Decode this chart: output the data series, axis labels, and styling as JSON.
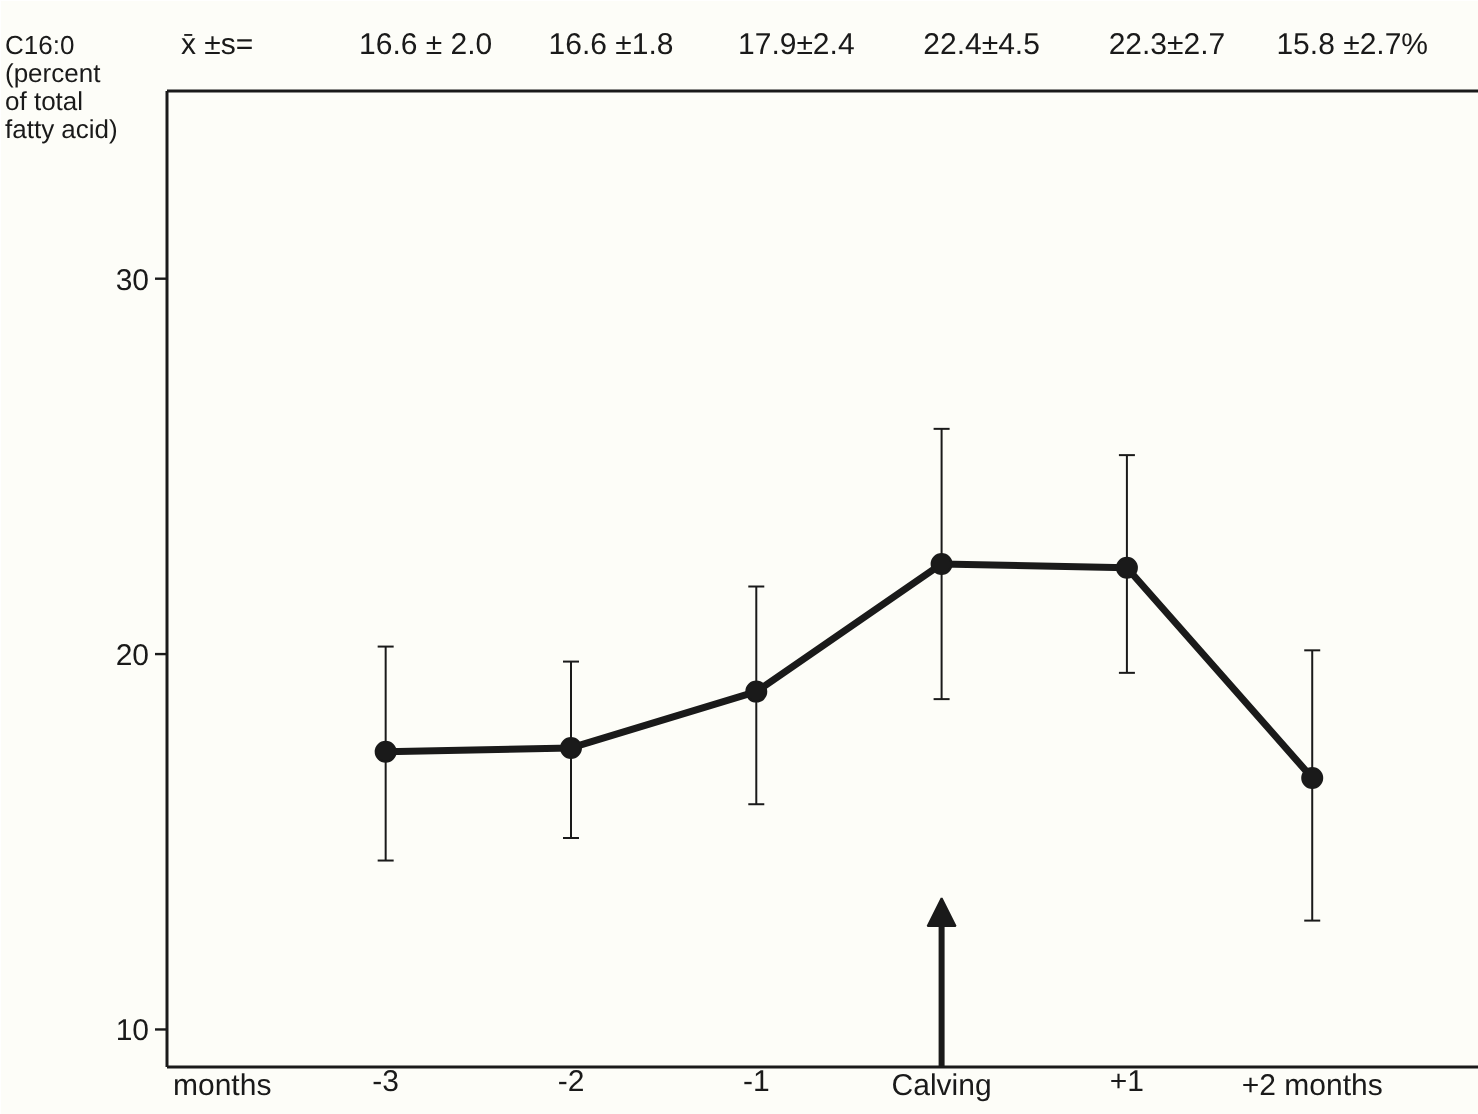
{
  "chart_data": {
    "type": "line",
    "ylabel": "C16:0\n(percent\nof total\nfatty acid)",
    "xlabel": "months",
    "categories": [
      "-3",
      "-2",
      "-1",
      "Calving",
      "+1",
      "+2 months"
    ],
    "series": [
      {
        "color": "#1a1a1a",
        "values": [
          17.4,
          17.5,
          19.0,
          22.4,
          22.3,
          16.7
        ],
        "errors": [
          [
            14.5,
            20.2
          ],
          [
            15.1,
            19.8
          ],
          [
            16.0,
            21.8
          ],
          [
            18.8,
            26.0
          ],
          [
            19.5,
            25.3
          ],
          [
            12.9,
            20.1
          ]
        ]
      }
    ],
    "ylim": [
      9,
      35
    ],
    "yticks": [
      10,
      20,
      30
    ],
    "annotations": [
      "x̄ ±s=",
      "16.6 ± 2.0",
      "16.6 ±1.8",
      "17.9±2.4",
      "22.4±4.5",
      "22.3±2.7",
      "15.8 ±2.7%"
    ],
    "marker": "circle",
    "line_style": "solid",
    "grid": false
  }
}
